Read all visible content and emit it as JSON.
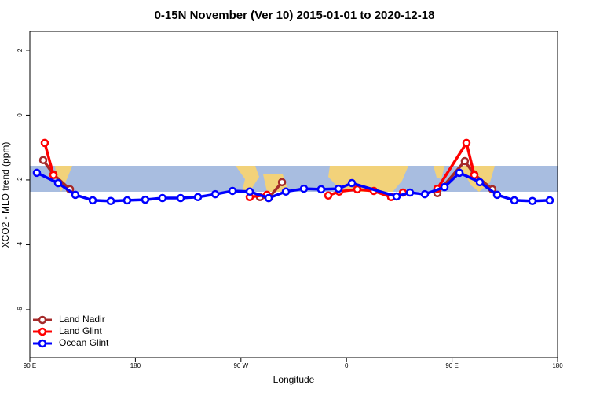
{
  "chart_data": {
    "type": "line",
    "title": "0-15N November (Ver 10)   2015-01-01 to 2020-12-18",
    "xlabel": "Longitude",
    "ylabel": "XCO2 - MLO trend (ppm)",
    "xlim": [
      90,
      540
    ],
    "xticks": [
      {
        "value": 90,
        "label": "90 E"
      },
      180,
      {
        "value": 270,
        "label": "90 W"
      },
      {
        "value": 360,
        "label": "0"
      },
      {
        "value": 450,
        "label": "90 E"
      },
      {
        "value": 540,
        "label": "180"
      }
    ],
    "ylim": [
      -7.48,
      2.58
    ],
    "yticks": [
      2,
      0,
      -2,
      -4,
      -6
    ],
    "legend": "bottom-left",
    "series": [
      {
        "name": "Land Nadir",
        "color": "#a52a2a",
        "x": [
          101.4,
          110.1,
          124.2,
          205,
          286.2,
          293.6,
          305.0,
          370,
          437.5,
          460.9,
          469.0,
          484.4
        ],
        "values": [
          -1.39,
          -1.83,
          -2.29,
          null,
          -2.53,
          -2.56,
          -2.07,
          null,
          -2.41,
          -1.42,
          -1.83,
          -2.29
        ]
      },
      {
        "name": "Land Glint",
        "color": "#ff0000",
        "x": [
          102.7,
          110.1,
          190,
          277.5,
          292.2,
          320,
          344.5,
          353.8,
          369.2,
          383.3,
          398.0,
          408.1,
          420,
          437.5,
          462.3,
          469.0
        ],
        "values": [
          -0.86,
          -1.85,
          null,
          -2.53,
          -2.46,
          null,
          -2.48,
          -2.36,
          -2.29,
          -2.34,
          -2.53,
          -2.39,
          null,
          -2.27,
          -0.86,
          -1.85
        ]
      },
      {
        "name": "Ocean Glint",
        "color": "#0000ff",
        "x": [
          96.0,
          114.1,
          128.8,
          143.6,
          159.0,
          173.0,
          188.4,
          203.1,
          218.6,
          233.3,
          248.1,
          262.8,
          277.5,
          293.6,
          308.3,
          323.7,
          338.4,
          353.2,
          364.6,
          402.7,
          414.1,
          426.8,
          443.6,
          456.3,
          473.7,
          488.4,
          503.1,
          518.5,
          533.3
        ],
        "values": [
          -1.78,
          -2.1,
          -2.46,
          -2.63,
          -2.65,
          -2.63,
          -2.61,
          -2.56,
          -2.56,
          -2.53,
          -2.44,
          -2.34,
          -2.36,
          -2.56,
          -2.36,
          -2.27,
          -2.29,
          -2.27,
          -2.1,
          -2.51,
          -2.39,
          -2.44,
          -2.22,
          -1.78,
          -2.07,
          -2.46,
          -2.63,
          -2.65,
          -2.63
        ]
      }
    ]
  }
}
